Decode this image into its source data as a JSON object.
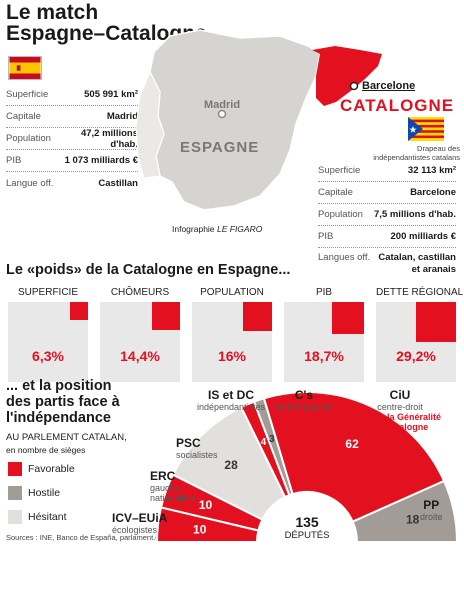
{
  "header": {
    "title_line1": "Le match",
    "title_line2": "Espagne–Catalogne"
  },
  "colors": {
    "red": "#e3101f",
    "gray_dark": "#a29c96",
    "gray_light": "#e2e0dd",
    "spain_red": "#c60b1e",
    "spain_yellow": "#ffc400"
  },
  "spain_table": [
    {
      "label": "Superficie",
      "value": "505 991 km²"
    },
    {
      "label": "Capitale",
      "value": "Madrid"
    },
    {
      "label": "Population",
      "value": "47,2 millions d'hab."
    },
    {
      "label": "PIB",
      "value": "1 073 milliards €"
    },
    {
      "label": "Langue off.",
      "value": "Castillan"
    }
  ],
  "map": {
    "madrid": "Madrid",
    "espagne": "ESPAGNE",
    "barcelone": "Barcelone",
    "catalogne": "CATALOGNE",
    "credit_prefix": "Infographie",
    "credit_brand": "LE FIGARO",
    "flag_caption_1": "Drapeau des",
    "flag_caption_2": "indépendantistes catalans"
  },
  "catalonia_table": [
    {
      "label": "Superficie",
      "value": "32 113 km²"
    },
    {
      "label": "Capitale",
      "value": "Barcelone"
    },
    {
      "label": "Population",
      "value": "7,5 millions d'hab."
    },
    {
      "label": "PIB",
      "value": "200 milliards €"
    },
    {
      "label": "Langues off.",
      "value": "Catalan, castillan",
      "value2": "et aranais"
    }
  ],
  "weight_section": {
    "heading": "Le «poids» de la Catalogne en Espagne..."
  },
  "chart_data": [
    {
      "type": "bar",
      "title": "Le «poids» de la Catalogne en Espagne...",
      "categories": [
        "SUPERFICIE",
        "CHÔMEURS",
        "POPULATION",
        "PIB",
        "DETTE RÉGIONALE"
      ],
      "values": [
        6.3,
        14.4,
        16,
        18.7,
        29.2
      ],
      "labels": [
        "6,3%",
        "14,4%",
        "16%",
        "18,7%",
        "29,2%"
      ],
      "unit": "%"
    },
    {
      "type": "pie",
      "subtitle": "AU PARLEMENT CATALAN, en nombre de sièges",
      "total": 135,
      "total_label": "DÉPUTÉS",
      "slices": [
        {
          "name": "ICV–EUiA",
          "sub": "écologistes",
          "value": 10,
          "position": "Favorable"
        },
        {
          "name": "ERC",
          "sub": "gauche nationaliste",
          "value": 10,
          "position": "Favorable"
        },
        {
          "name": "PSC",
          "sub": "socialistes",
          "value": 28,
          "position": "Hésitant"
        },
        {
          "name": "IS et DC",
          "sub": "indépendantistes",
          "value": 4,
          "position": "Favorable"
        },
        {
          "name": "C's",
          "sub": "centre-gauche",
          "value": 3,
          "position": "Hostile"
        },
        {
          "name": "CiU",
          "sub": "centre-droit",
          "value": 62,
          "position": "Favorable"
        },
        {
          "name": "PP",
          "sub": "droite",
          "value": 18,
          "position": "Hostile"
        }
      ]
    }
  ],
  "parties_section": {
    "heading_1": "... et la position",
    "heading_2": "des partis face à",
    "heading_3": "l'indépendance",
    "sub_1": "AU PARLEMENT CATALAN,",
    "sub_2": "en nombre de sièges",
    "ciu_note_1": "dirige la Généralité",
    "ciu_note_2": "de Catalogne",
    "legend": [
      "Favorable",
      "Hostile",
      "Hésitant"
    ],
    "sources": "Sources : INE, Banco de España, parlament.cat"
  }
}
